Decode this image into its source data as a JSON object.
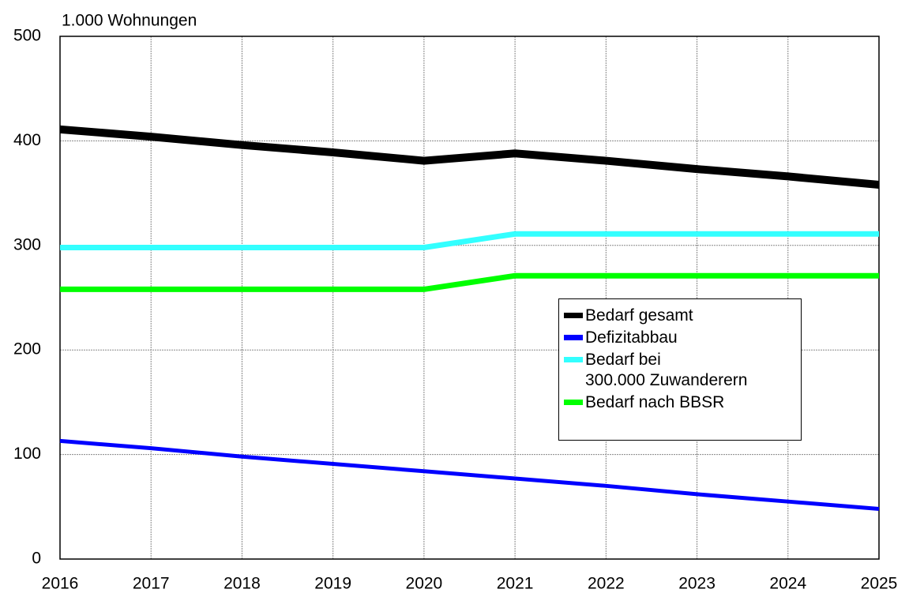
{
  "chart_data": {
    "type": "line",
    "y_axis_label": "1.000 Wohnungen",
    "x": [
      2016,
      2017,
      2018,
      2019,
      2020,
      2021,
      2022,
      2023,
      2024,
      2025
    ],
    "series": [
      {
        "name": "Bedarf gesamt",
        "color": "#000000",
        "width": 10,
        "values": [
          411,
          404,
          396,
          389,
          381,
          388,
          381,
          373,
          366,
          358
        ]
      },
      {
        "name": "Defizitabbau",
        "color": "#0000ff",
        "width": 5,
        "values": [
          113,
          106,
          98,
          91,
          84,
          77,
          70,
          62,
          55,
          48
        ]
      },
      {
        "name": "Bedarf bei\n300.000 Zuwanderern",
        "color": "#33ffff",
        "width": 7,
        "values": [
          298,
          298,
          298,
          298,
          298,
          311,
          311,
          311,
          311,
          311
        ]
      },
      {
        "name": "Bedarf nach BBSR",
        "color": "#00ff00",
        "width": 7,
        "values": [
          258,
          258,
          258,
          258,
          258,
          271,
          271,
          271,
          271,
          271
        ]
      }
    ],
    "xlim": [
      2016,
      2025
    ],
    "xticks": [
      2016,
      2017,
      2018,
      2019,
      2020,
      2021,
      2022,
      2023,
      2024,
      2025
    ],
    "ylim": [
      0,
      500
    ],
    "yticks": [
      0,
      100,
      200,
      300,
      400,
      500
    ],
    "grid": true
  }
}
